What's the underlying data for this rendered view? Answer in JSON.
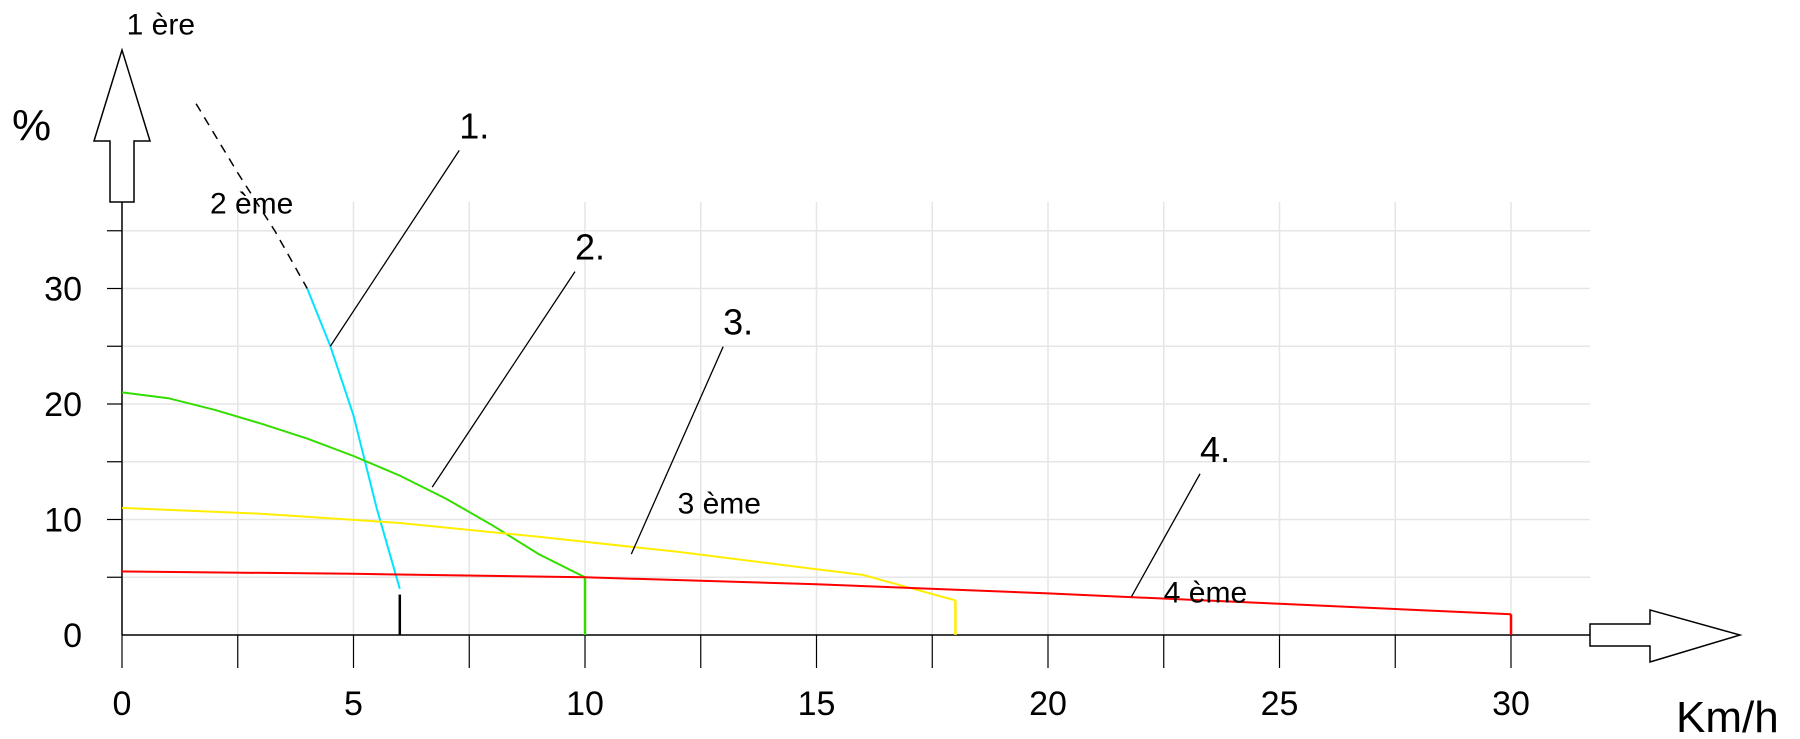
{
  "chart_data": {
    "type": "line",
    "xlabel": "Km/h",
    "ylabel": "%",
    "xlim": [
      0,
      30
    ],
    "ylim": [
      0,
      30
    ],
    "x_ticks": [
      0,
      5,
      10,
      15,
      20,
      25,
      30
    ],
    "y_ticks": [
      0,
      10,
      20,
      30
    ],
    "grid": true,
    "series": [
      {
        "name": "1 ère",
        "color": "#00e5ff",
        "points": [
          [
            4,
            30
          ],
          [
            4.5,
            25
          ],
          [
            5,
            19
          ],
          [
            5.5,
            11
          ],
          [
            6,
            4
          ]
        ],
        "dashed_extension": [
          [
            1.6,
            46
          ],
          [
            2.5,
            40
          ],
          [
            3.3,
            35
          ],
          [
            4,
            30
          ]
        ],
        "end_marker": {
          "x": 6,
          "y_from": 0,
          "y_to": 3.5,
          "color": "#000000"
        }
      },
      {
        "name": "2 ème",
        "color": "#33dd00",
        "points": [
          [
            0,
            21
          ],
          [
            1,
            20.5
          ],
          [
            2,
            19.5
          ],
          [
            3,
            18.3
          ],
          [
            4,
            17
          ],
          [
            5,
            15.5
          ],
          [
            6,
            13.8
          ],
          [
            7,
            11.8
          ],
          [
            8,
            9.5
          ],
          [
            9,
            7
          ],
          [
            10,
            5
          ]
        ],
        "end_marker": {
          "x": 10,
          "y_from": 0,
          "y_to": 5,
          "color": "#33dd00"
        }
      },
      {
        "name": "3 ème",
        "color": "#ffee00",
        "points": [
          [
            0,
            11
          ],
          [
            3,
            10.5
          ],
          [
            6,
            9.7
          ],
          [
            9,
            8.5
          ],
          [
            12,
            7.2
          ],
          [
            15,
            5.7
          ],
          [
            16,
            5.2
          ],
          [
            18,
            3
          ]
        ],
        "end_marker": {
          "x": 18,
          "y_from": 0,
          "y_to": 3,
          "color": "#ffee00"
        }
      },
      {
        "name": "4 ème",
        "color": "#ff0000",
        "points": [
          [
            0,
            5.5
          ],
          [
            5,
            5.3
          ],
          [
            10,
            5
          ],
          [
            15,
            4.4
          ],
          [
            20,
            3.6
          ],
          [
            25,
            2.7
          ],
          [
            30,
            1.8
          ]
        ],
        "end_marker": {
          "x": 30,
          "y_from": 0,
          "y_to": 1.8,
          "color": "#ff0000"
        }
      }
    ],
    "callouts": [
      {
        "label": "1.",
        "target": [
          4.5,
          25
        ],
        "label_at": [
          7.5,
          43
        ]
      },
      {
        "label": "2.",
        "target": [
          6.7,
          12.8
        ],
        "label_at": [
          10,
          32.5
        ]
      },
      {
        "label": "3.",
        "target": [
          11,
          7
        ],
        "label_at": [
          13.2,
          26
        ]
      },
      {
        "label": "4.",
        "target": [
          21.8,
          3.3
        ],
        "label_at": [
          23.5,
          15
        ]
      }
    ],
    "gear_labels": [
      {
        "text": "1 ère",
        "at": [
          0.1,
          52
        ]
      },
      {
        "text": "2 ème",
        "at": [
          1.9,
          36.5
        ]
      },
      {
        "text": "3 ème",
        "at": [
          12,
          10.5
        ]
      },
      {
        "text": "4 ème",
        "at": [
          22.5,
          2.8
        ]
      }
    ]
  }
}
